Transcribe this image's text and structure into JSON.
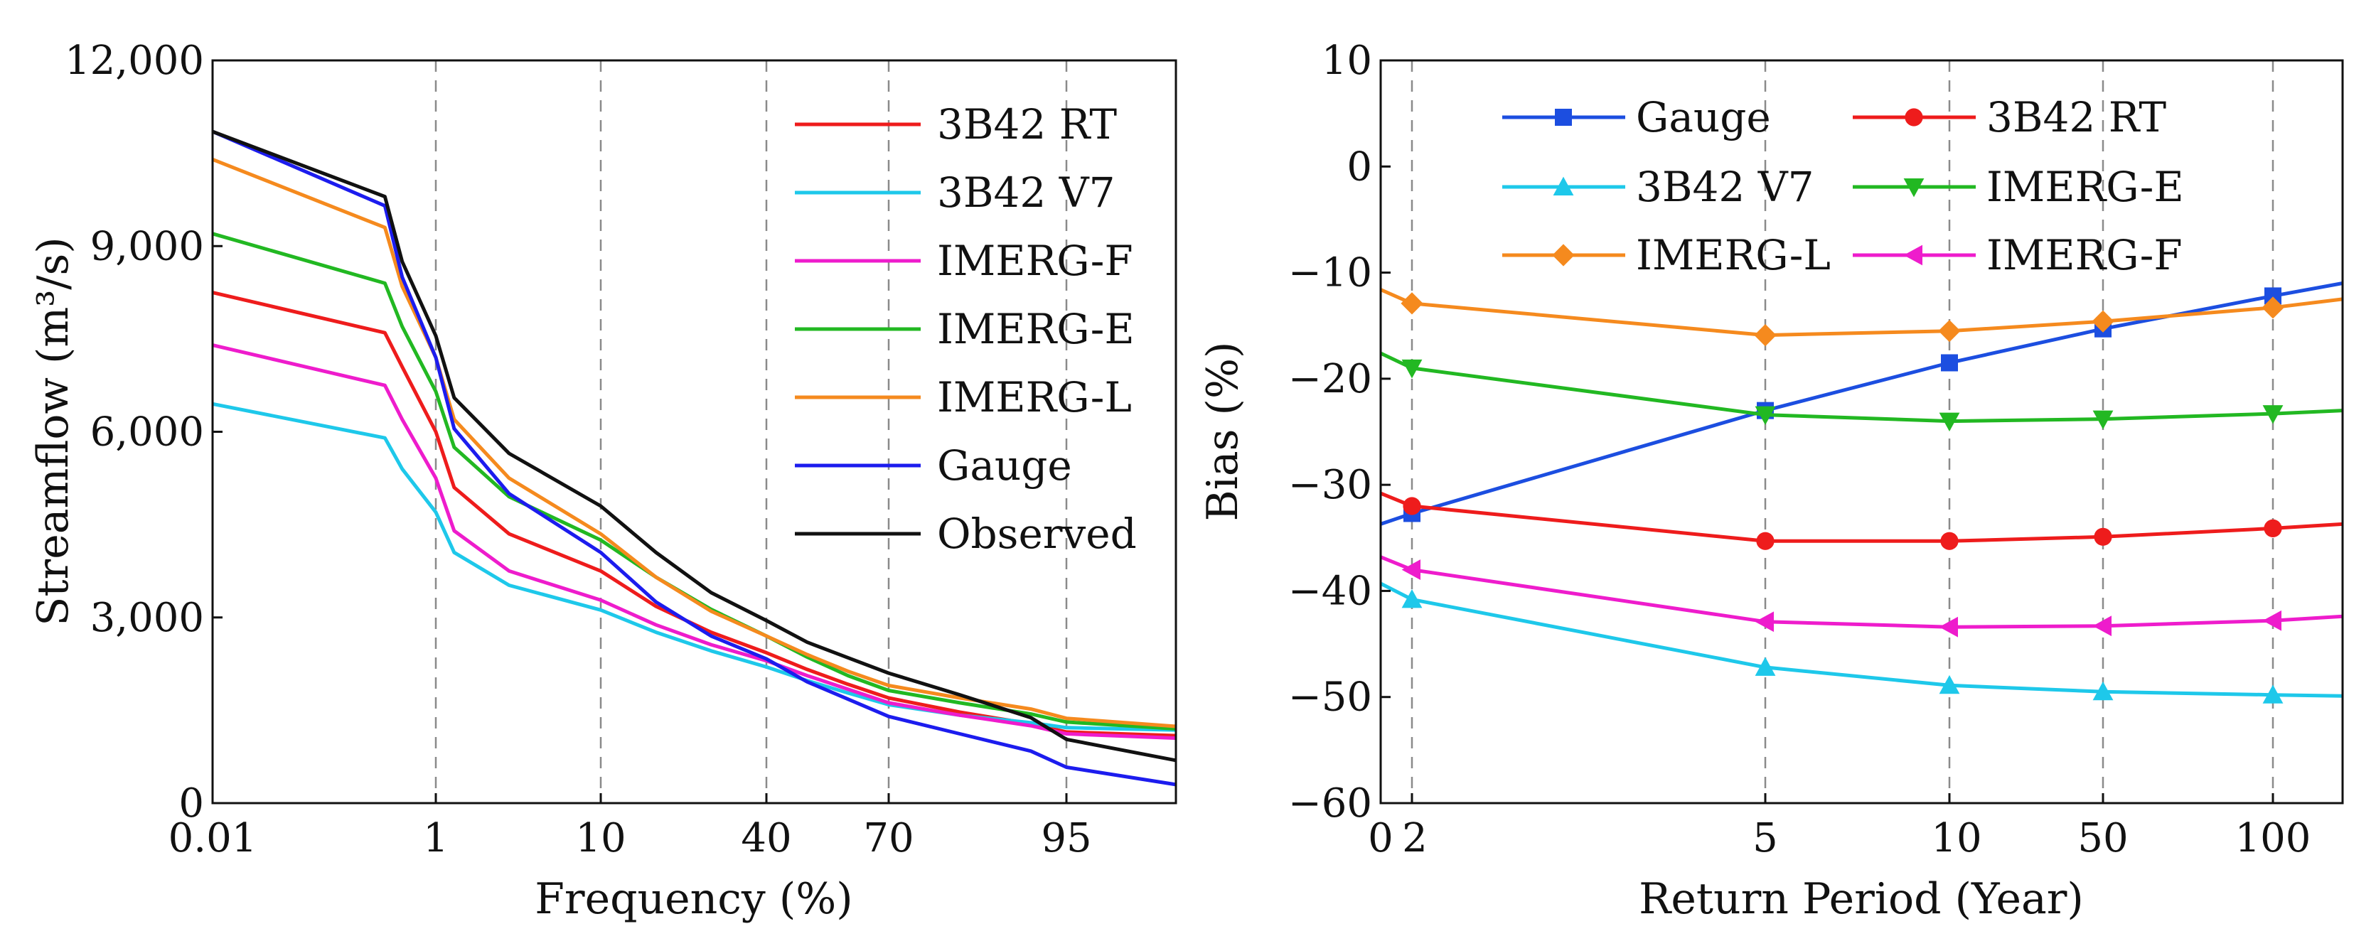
{
  "chart_data": [
    {
      "type": "line",
      "xlabel": "Frequency (%)",
      "ylabel": "Streamflow (m³/s)",
      "xticks": [
        "0.01",
        "1",
        "10",
        "40",
        "70",
        "95"
      ],
      "yticks": [
        "0",
        "3,000",
        "6,000",
        "9,000",
        "12,000"
      ],
      "ytick_values": [
        0,
        3000,
        6000,
        9000,
        12000
      ],
      "ylim": [
        0,
        12000
      ],
      "x_positions": [
        0.01,
        0.35,
        0.5,
        1,
        2,
        5,
        10,
        20,
        30,
        40,
        50,
        60,
        70,
        80,
        90,
        95,
        100
      ],
      "grid_x": [
        "1",
        "10",
        "40",
        "70",
        "95"
      ],
      "legend_position": "top-right",
      "series": [
        {
          "name": "3B42 RT",
          "color": "#ee1c1c",
          "values": [
            8250,
            7600,
            7050,
            6000,
            5100,
            4350,
            3750,
            3180,
            2760,
            2430,
            2160,
            1920,
            1700,
            1470,
            1280,
            1150,
            1090
          ]
        },
        {
          "name": "3B42 V7",
          "color": "#1ec8ea",
          "values": [
            6450,
            5900,
            5400,
            4700,
            4050,
            3520,
            3120,
            2760,
            2460,
            2200,
            1980,
            1780,
            1590,
            1420,
            1300,
            1220,
            1180
          ]
        },
        {
          "name": "IMERG-F",
          "color": "#ee1ccc",
          "values": [
            7400,
            6750,
            6200,
            5250,
            4400,
            3750,
            3280,
            2880,
            2560,
            2300,
            2060,
            1840,
            1620,
            1420,
            1250,
            1120,
            1050
          ]
        },
        {
          "name": "IMERG-E",
          "color": "#22b822",
          "values": [
            9200,
            8400,
            7700,
            6650,
            5750,
            4950,
            4250,
            3650,
            3130,
            2700,
            2360,
            2060,
            1820,
            1620,
            1440,
            1310,
            1200
          ]
        },
        {
          "name": "IMERG-L",
          "color": "#f58a1e",
          "values": [
            10400,
            9300,
            8350,
            7200,
            6200,
            5250,
            4350,
            3650,
            3100,
            2700,
            2400,
            2130,
            1900,
            1700,
            1520,
            1370,
            1240
          ]
        },
        {
          "name": "Gauge",
          "color": "#1c1cee",
          "values": [
            10850,
            9650,
            8500,
            7200,
            6050,
            5000,
            4050,
            3250,
            2700,
            2330,
            1960,
            1680,
            1400,
            1120,
            840,
            580,
            300
          ]
        },
        {
          "name": "Observed",
          "color": "#111111",
          "values": [
            10850,
            9800,
            8750,
            7550,
            6550,
            5650,
            4800,
            4050,
            3400,
            2950,
            2600,
            2350,
            2100,
            1750,
            1380,
            1030,
            690
          ]
        }
      ]
    },
    {
      "type": "line",
      "xlabel": "Return Period (Year)",
      "ylabel": "Bias (%)",
      "xticks": [
        "0",
        "2",
        "5",
        "10",
        "50",
        "100"
      ],
      "yticks": [
        "10",
        "0",
        "−10",
        "−20",
        "−30",
        "−40",
        "−50",
        "−60"
      ],
      "ytick_values": [
        10,
        0,
        -10,
        -20,
        -30,
        -40,
        -50,
        -60
      ],
      "ylim": [
        -60,
        10
      ],
      "x_positions": [
        "0",
        "2",
        "5",
        "10",
        "50",
        "100",
        "end"
      ],
      "marker_positions": [
        "2",
        "5",
        "10",
        "50",
        "100"
      ],
      "grid_x": [
        "2",
        "5",
        "10",
        "50",
        "100"
      ],
      "legend_position": "top (two columns)",
      "series": [
        {
          "name": "Gauge",
          "color": "#1c4ee0",
          "marker": "square",
          "values": [
            -33.7,
            -32.7,
            -23.0,
            -18.5,
            -15.3,
            -12.2,
            -11.0
          ]
        },
        {
          "name": "3B42 RT",
          "color": "#ee1c1c",
          "marker": "circle",
          "values": [
            -30.8,
            -32.0,
            -35.3,
            -35.3,
            -34.9,
            -34.1,
            -33.7
          ]
        },
        {
          "name": "3B42 V7",
          "color": "#1ec8ea",
          "marker": "triangle-up",
          "values": [
            -39.3,
            -40.8,
            -47.2,
            -48.9,
            -49.5,
            -49.8,
            -49.9
          ]
        },
        {
          "name": "IMERG-E",
          "color": "#22b822",
          "marker": "triangle-down",
          "values": [
            -17.6,
            -19.0,
            -23.4,
            -24.0,
            -23.8,
            -23.3,
            -23.0
          ]
        },
        {
          "name": "IMERG-L",
          "color": "#f58a1e",
          "marker": "diamond",
          "values": [
            -11.6,
            -12.9,
            -15.9,
            -15.5,
            -14.6,
            -13.3,
            -12.5
          ]
        },
        {
          "name": "IMERG-F",
          "color": "#ee1ccc",
          "marker": "triangle-left",
          "values": [
            -36.8,
            -38.0,
            -42.9,
            -43.4,
            -43.3,
            -42.8,
            -42.4
          ]
        }
      ]
    }
  ]
}
